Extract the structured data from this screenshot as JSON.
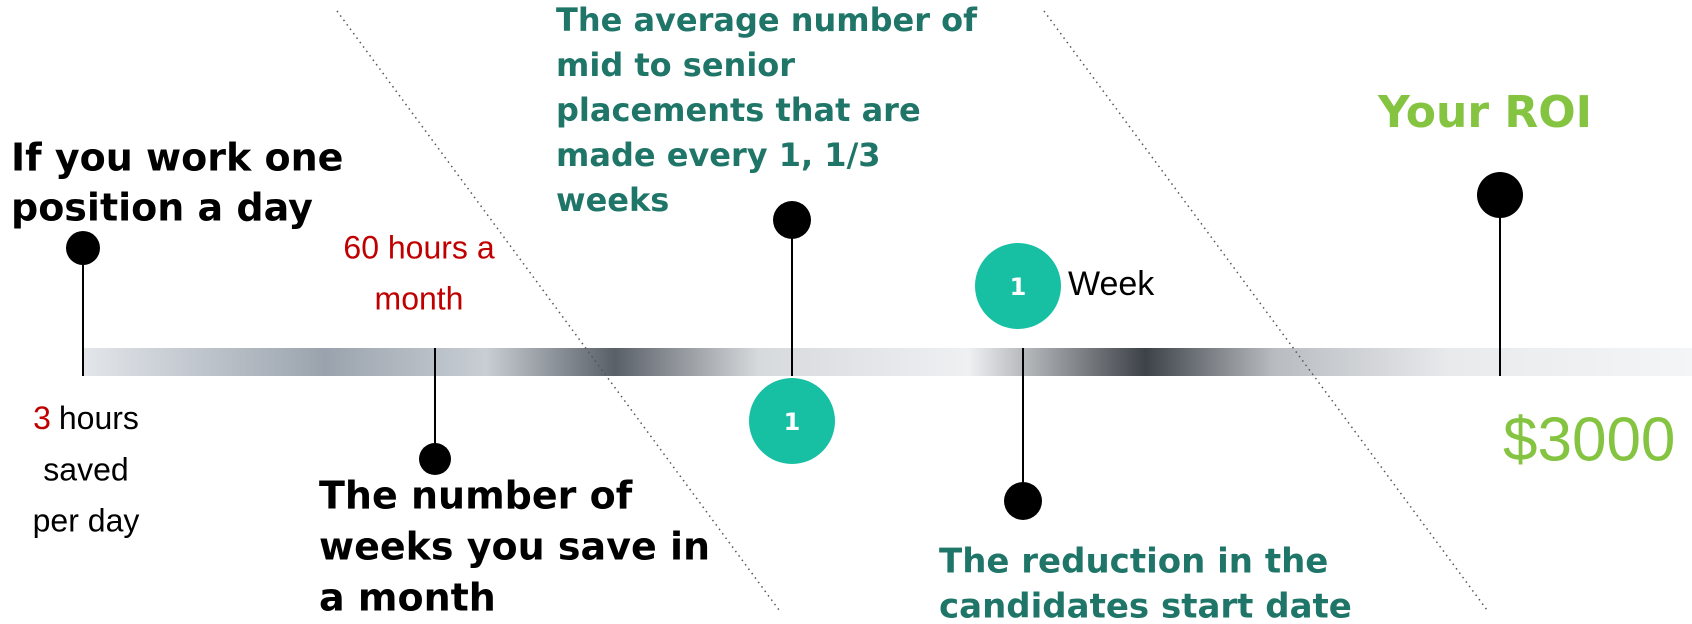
{
  "pins": [
    {
      "title_lines": [
        "If you work one",
        "position a day"
      ],
      "highlight": "3",
      "note_lines": [
        "hours",
        "saved",
        "per day"
      ]
    },
    {
      "title_lines": [
        "60 hours a",
        "month"
      ],
      "note_lines": [
        "The number of",
        "weeks you save in",
        "a month"
      ]
    },
    {
      "title_lines": [
        "The average number of",
        "mid to senior",
        "placements that are",
        "made every 1, 1/3",
        "weeks"
      ],
      "badge": "1"
    },
    {
      "badge": "1",
      "badge_label": "Week",
      "note_lines": [
        "The reduction in the",
        "candidates start date"
      ]
    },
    {
      "title_lines": [
        "Your ROI"
      ],
      "result": "$3000"
    }
  ]
}
